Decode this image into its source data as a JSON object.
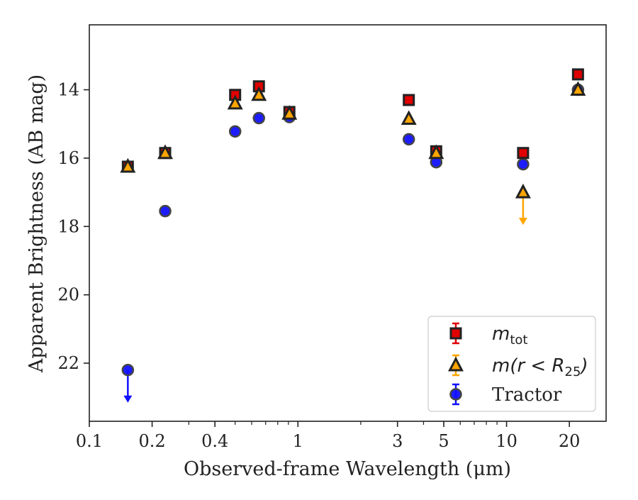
{
  "chart_data": {
    "type": "scatter",
    "xlabel": "Observed-frame Wavelength (μm)",
    "ylabel": "Apparent Brightness (AB mag)",
    "xscale": "log",
    "xlim": [
      0.1,
      30
    ],
    "ylim": [
      23.7,
      12.1
    ],
    "y_inverted": true,
    "x_ticks": [
      0.1,
      0.2,
      0.4,
      1,
      3,
      5,
      10,
      20
    ],
    "x_tick_labels": [
      "0.1",
      "0.2",
      "0.4",
      "1",
      "3",
      "5",
      "10",
      "20"
    ],
    "y_ticks": [
      14,
      16,
      18,
      20,
      22
    ],
    "y_tick_labels": [
      "14",
      "16",
      "18",
      "20",
      "22"
    ],
    "grid": false,
    "legend_position": "lower-right",
    "series": [
      {
        "name": "m_tot",
        "legend_main": "m",
        "legend_sub": "tot",
        "marker": "square",
        "color": "#e00000",
        "x": [
          0.153,
          0.231,
          0.5,
          0.65,
          0.91,
          3.4,
          4.6,
          12.0,
          22.0
        ],
        "y": [
          16.25,
          15.85,
          14.15,
          13.9,
          14.65,
          14.3,
          15.8,
          15.85,
          13.55
        ],
        "upper_limit": [
          false,
          false,
          false,
          false,
          false,
          false,
          false,
          false,
          false
        ]
      },
      {
        "name": "m(r < R_25)",
        "legend_main": "m(r < R",
        "legend_sub": "25",
        "legend_close": ")",
        "marker": "triangle",
        "color": "#ffa500",
        "x": [
          0.153,
          0.231,
          0.5,
          0.65,
          0.91,
          3.4,
          4.6,
          12.0,
          22.0
        ],
        "y": [
          16.25,
          15.85,
          14.4,
          14.15,
          14.7,
          14.85,
          15.85,
          17.0,
          14.0
        ],
        "upper_limit": [
          false,
          false,
          false,
          false,
          false,
          false,
          false,
          true,
          false
        ]
      },
      {
        "name": "Tractor",
        "legend_main": "Tractor",
        "marker": "circle",
        "color": "#1010ff",
        "x": [
          0.153,
          0.231,
          0.5,
          0.65,
          0.91,
          3.4,
          4.6,
          12.0,
          22.0
        ],
        "y": [
          22.2,
          17.55,
          15.22,
          14.83,
          14.8,
          15.45,
          16.12,
          16.18,
          14.0
        ],
        "upper_limit": [
          true,
          false,
          false,
          false,
          false,
          false,
          false,
          false,
          false
        ]
      }
    ]
  }
}
